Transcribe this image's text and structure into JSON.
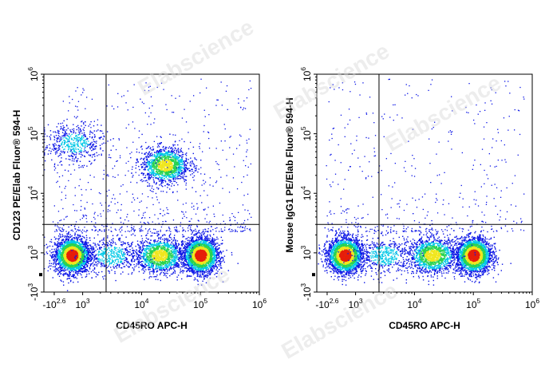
{
  "watermark": "Elabscience",
  "colors": {
    "density_low": "#0a14e6",
    "density_mid_low": "#00c8e6",
    "density_mid": "#28d250",
    "density_mid_high": "#f0e61e",
    "density_high": "#e61e0a",
    "gate_line": "#000000",
    "axis": "#000000",
    "watermark": "#d8d8d8"
  },
  "chart_data": [
    {
      "type": "scatter",
      "plot_style": "flow-cytometry density dot plot (biexponential axes)",
      "title": "",
      "xlabel": "CD45RO APC-H",
      "ylabel": "CD123 PE/Elab Fluor® 594-H",
      "x_scale": "biexponential",
      "y_scale": "biexponential",
      "xlim": [
        -1000,
        1000000
      ],
      "ylim": [
        -1000,
        1000000
      ],
      "x_ticks": [
        {
          "base": "-10",
          "exp": "2.6"
        },
        {
          "base": "10",
          "exp": "3"
        },
        {
          "base": "10",
          "exp": "4"
        },
        {
          "base": "10",
          "exp": "5"
        },
        {
          "base": "10",
          "exp": "6"
        }
      ],
      "y_ticks": [
        {
          "base": "-10",
          "exp": "3"
        },
        {
          "base": "10",
          "exp": "3"
        },
        {
          "base": "10",
          "exp": "4"
        },
        {
          "base": "10",
          "exp": "5"
        },
        {
          "base": "10",
          "exp": "6"
        }
      ],
      "quadrant_gate": {
        "x": 2500,
        "y": 3000
      },
      "populations": [
        {
          "center": [
            500,
            900
          ],
          "density": "high"
        },
        {
          "center": [
            100000,
            900
          ],
          "density": "high"
        },
        {
          "center": [
            20000,
            900
          ],
          "density": "medium"
        },
        {
          "center": [
            3000,
            900
          ],
          "density": "low"
        },
        {
          "center": [
            25000,
            30000
          ],
          "density": "medium"
        },
        {
          "center": [
            600,
            70000
          ],
          "density": "low"
        }
      ]
    },
    {
      "type": "scatter",
      "plot_style": "flow-cytometry density dot plot (biexponential axes)",
      "title": "",
      "xlabel": "CD45RO APC-H",
      "ylabel": "Mouse IgG1 PE/Elab Fluor® 594-H",
      "x_scale": "biexponential",
      "y_scale": "biexponential",
      "xlim": [
        -1000,
        1000000
      ],
      "ylim": [
        -1000,
        1000000
      ],
      "x_ticks": [
        {
          "base": "-10",
          "exp": "2.6"
        },
        {
          "base": "10",
          "exp": "3"
        },
        {
          "base": "10",
          "exp": "4"
        },
        {
          "base": "10",
          "exp": "5"
        },
        {
          "base": "10",
          "exp": "6"
        }
      ],
      "y_ticks": [
        {
          "base": "-10",
          "exp": "3"
        },
        {
          "base": "10",
          "exp": "3"
        },
        {
          "base": "10",
          "exp": "4"
        },
        {
          "base": "10",
          "exp": "5"
        },
        {
          "base": "10",
          "exp": "6"
        }
      ],
      "quadrant_gate": {
        "x": 2500,
        "y": 3000
      },
      "populations": [
        {
          "center": [
            500,
            900
          ],
          "density": "high"
        },
        {
          "center": [
            100000,
            900
          ],
          "density": "high"
        },
        {
          "center": [
            20000,
            900
          ],
          "density": "medium"
        },
        {
          "center": [
            3000,
            900
          ],
          "density": "low"
        }
      ]
    }
  ]
}
